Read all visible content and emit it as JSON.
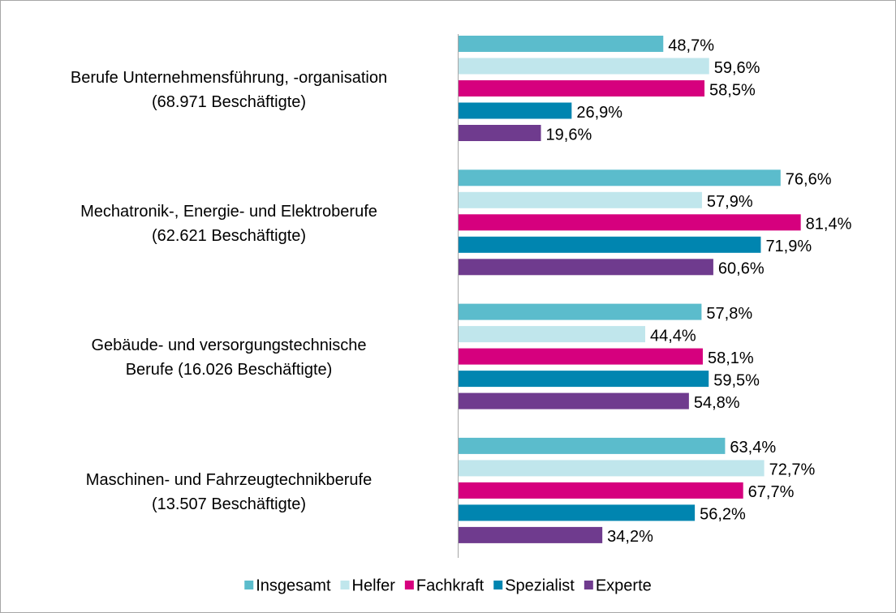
{
  "chart_data": {
    "type": "bar",
    "orientation": "horizontal",
    "categories": [
      "Berufe Unternehmensführung, -organisation\n(68.971 Beschäftigte)",
      "Mechatronik-, Energie- und Elektroberufe\n(62.621 Beschäftigte)",
      "Gebäude- und versorgungstechnische\nBerufe (16.026 Beschäftigte)",
      "Maschinen- und Fahrzeugtechnikberufe\n(13.507 Beschäftigte)"
    ],
    "series": [
      {
        "name": "Insgesamt",
        "color": "#5bbccc",
        "values": [
          48.7,
          76.6,
          57.8,
          63.4
        ],
        "value_labels": [
          "48,7%",
          "76,6%",
          "57,8%",
          "63,4%"
        ]
      },
      {
        "name": "Helfer",
        "color": "#c0e6ec",
        "values": [
          59.6,
          57.9,
          44.4,
          72.7
        ],
        "value_labels": [
          "59,6%",
          "57,9%",
          "44,4%",
          "72,7%"
        ]
      },
      {
        "name": "Fachkraft",
        "color": "#d6007e",
        "values": [
          58.5,
          81.4,
          58.1,
          67.7
        ],
        "value_labels": [
          "58,5%",
          "81,4%",
          "58,1%",
          "67,7%"
        ]
      },
      {
        "name": "Spezialist",
        "color": "#0085b0",
        "values": [
          26.9,
          71.9,
          59.5,
          56.2
        ],
        "value_labels": [
          "26,9%",
          "71,9%",
          "59,5%",
          "56,2%"
        ]
      },
      {
        "name": "Experte",
        "color": "#6f3b8e",
        "values": [
          19.6,
          60.6,
          54.8,
          34.2
        ],
        "value_labels": [
          "19,6%",
          "60,6%",
          "54,8%",
          "34,2%"
        ]
      }
    ],
    "legend": "bottom"
  }
}
